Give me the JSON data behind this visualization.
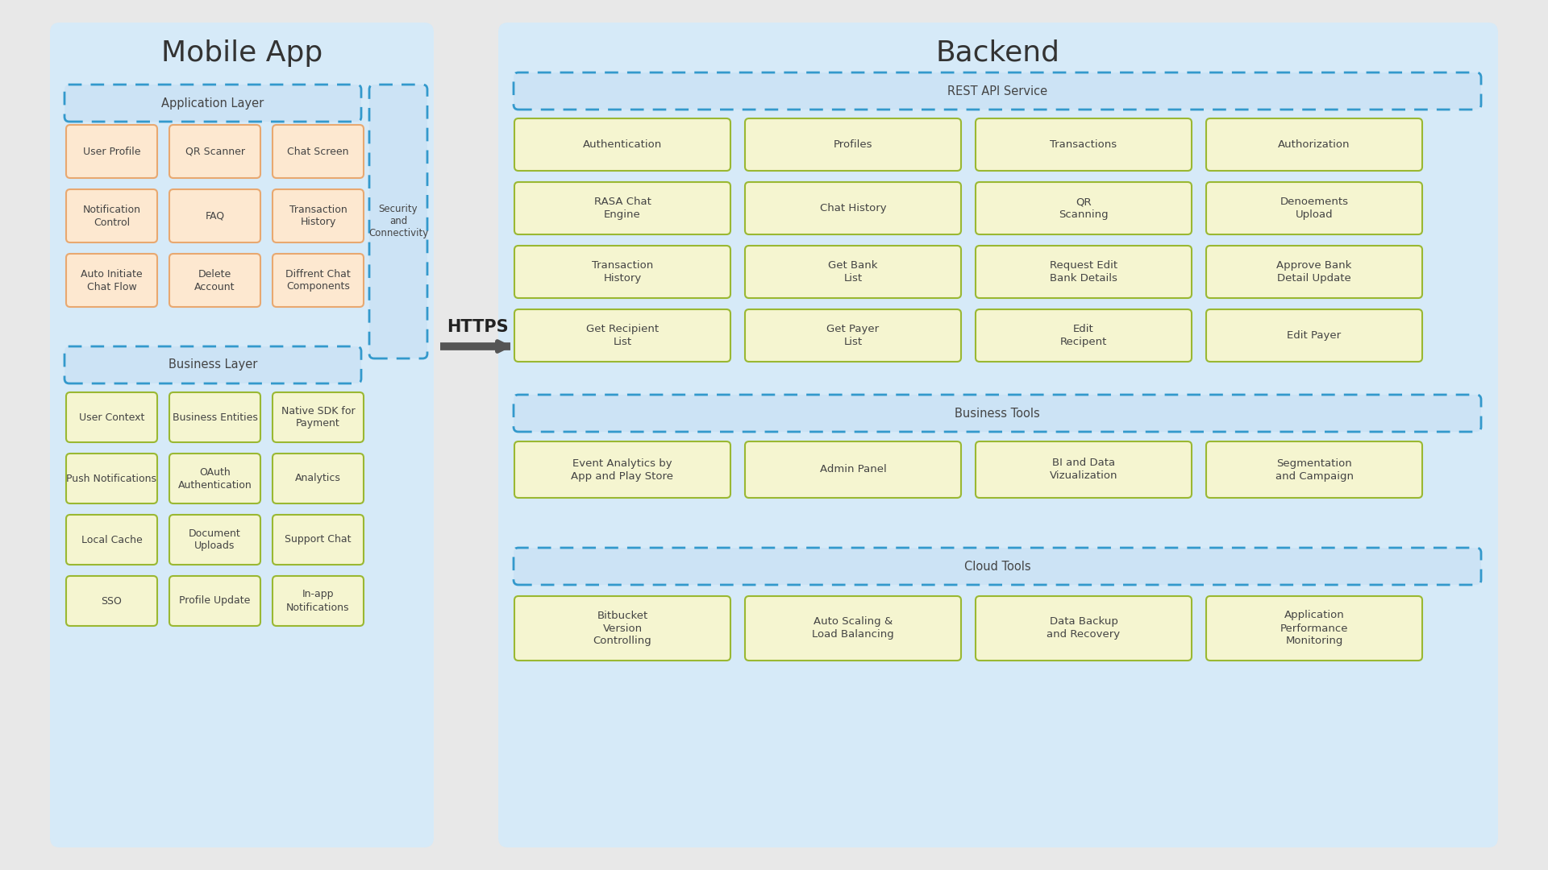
{
  "bg_color": "#e8e8e8",
  "mobile_bg": "#d6eaf8",
  "backend_bg": "#d6eaf8",
  "panel_bg": "#cce3f5",
  "app_box_fill": "#fde8d0",
  "app_box_edge": "#e8a870",
  "biz_box_fill": "#f5f5d0",
  "biz_box_edge": "#9ab832",
  "be_box_fill": "#f5f5d0",
  "be_box_edge": "#9ab832",
  "title_color": "#333333",
  "text_color": "#444444",
  "dashed_color": "#3399cc",
  "mobile_title": "Mobile App",
  "backend_title": "Backend",
  "app_layer_label": "Application Layer",
  "biz_layer_label": "Business Layer",
  "security_label": "Security\nand\nConnectivity",
  "rest_api_label": "REST API Service",
  "biz_tools_label": "Business Tools",
  "cloud_tools_label": "Cloud Tools",
  "https_label": "HTTPS",
  "app_items": [
    [
      "User Profile",
      "QR Scanner",
      "Chat Screen"
    ],
    [
      "Notification\nControl",
      "FAQ",
      "Transaction\nHistory"
    ],
    [
      "Auto Initiate\nChat Flow",
      "Delete\nAccount",
      "Diffrent Chat\nComponents"
    ]
  ],
  "biz_items": [
    [
      "User Context",
      "Business Entities",
      "Native SDK for\nPayment"
    ],
    [
      "Push Notifications",
      "OAuth\nAuthentication",
      "Analytics"
    ],
    [
      "Local Cache",
      "Document\nUploads",
      "Support Chat"
    ],
    [
      "SSO",
      "Profile Update",
      "In-app\nNotifications"
    ]
  ],
  "rest_api_items": [
    [
      "Authentication",
      "Profiles",
      "Transactions",
      "Authorization"
    ],
    [
      "RASA Chat\nEngine",
      "Chat History",
      "QR\nScanning",
      "Denoements\nUpload"
    ],
    [
      "Transaction\nHistory",
      "Get Bank\nList",
      "Request Edit\nBank Details",
      "Approve Bank\nDetail Update"
    ],
    [
      "Get Recipient\nList",
      "Get Payer\nList",
      "Edit\nRecipent",
      "Edit Payer"
    ]
  ],
  "biz_tools_items": [
    [
      "Event Analytics by\nApp and Play Store",
      "Admin Panel",
      "BI and Data\nVizualization",
      "Segmentation\nand Campaign"
    ]
  ],
  "cloud_tools_items": [
    [
      "Bitbucket\nVersion\nControlling",
      "Auto Scaling &\nLoad Balancing",
      "Data Backup\nand Recovery",
      "Application\nPerformance\nMonitoring"
    ]
  ]
}
